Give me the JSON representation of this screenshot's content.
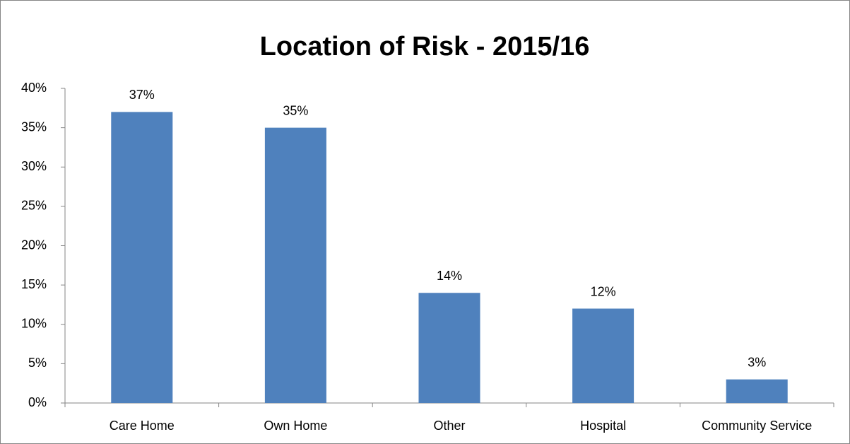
{
  "chart_data": {
    "type": "bar",
    "title": "Location of Risk - 2015/16",
    "categories": [
      "Care Home",
      "Own Home",
      "Other",
      "Hospital",
      "Community Service"
    ],
    "values": [
      37,
      35,
      14,
      12,
      3
    ],
    "value_labels": [
      "37%",
      "35%",
      "14%",
      "12%",
      "3%"
    ],
    "color": "#4f81bd",
    "ylim": [
      0,
      40
    ],
    "yticks": [
      {
        "value": 0,
        "label": "0%"
      },
      {
        "value": 5,
        "label": "5%"
      },
      {
        "value": 10,
        "label": "10%"
      },
      {
        "value": 15,
        "label": "15%"
      },
      {
        "value": 20,
        "label": "20%"
      },
      {
        "value": 25,
        "label": "25%"
      },
      {
        "value": 30,
        "label": "30%"
      },
      {
        "value": 35,
        "label": "35%"
      },
      {
        "value": 40,
        "label": "40%"
      }
    ],
    "grid": false
  }
}
